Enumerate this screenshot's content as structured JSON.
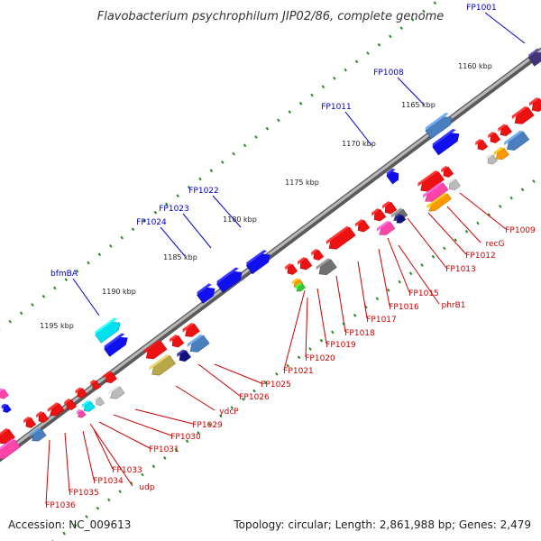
{
  "title": "Flavobacterium psychrophilum JIP02/86, complete genome",
  "accession": "Accession: NC_009613",
  "summary": "Topology: circular; Length: 2,861,988 bp; Genes: 2,479",
  "colors": {
    "backbone": "#8a8a8a",
    "dots": "#228b22",
    "label_plus": "#0000cc",
    "label_minus": "#cc0000",
    "gene_red": "#ee1111",
    "gene_blue": "#1010ee",
    "gene_steel": "#4a7fbf",
    "gene_cyan": "#00e0ee",
    "gene_pink": "#ff44aa",
    "gene_orange": "#ff9900",
    "gene_gray": "#bbbbbb",
    "gene_darkgray": "#707070",
    "gene_purple": "#443377",
    "gene_khaki": "#b8a84a",
    "gene_navy": "#101080"
  },
  "ticks": [
    "1160 kbp",
    "1165 kbp",
    "1170 kbp",
    "1175 kbp",
    "1180 kbp",
    "1185 kbp",
    "1190 kbp",
    "1195 kbp"
  ],
  "labels_plus": [
    "FP1001",
    "FP1008",
    "FP1011",
    "FP1022",
    "FP1023",
    "FP1024",
    "bfmBA"
  ],
  "labels_minus": [
    "FP1009",
    "recG",
    "FP1012",
    "FP1013",
    "phrB1",
    "FP1015",
    "FP1016",
    "FP1017",
    "FP1018",
    "FP1019",
    "FP1020",
    "FP1021",
    "FP1025",
    "FP1026",
    "ydcP",
    "FP1029",
    "FP1030",
    "FP1031",
    "udp",
    "FP1033",
    "FP1034",
    "FP1035",
    "FP1036"
  ]
}
